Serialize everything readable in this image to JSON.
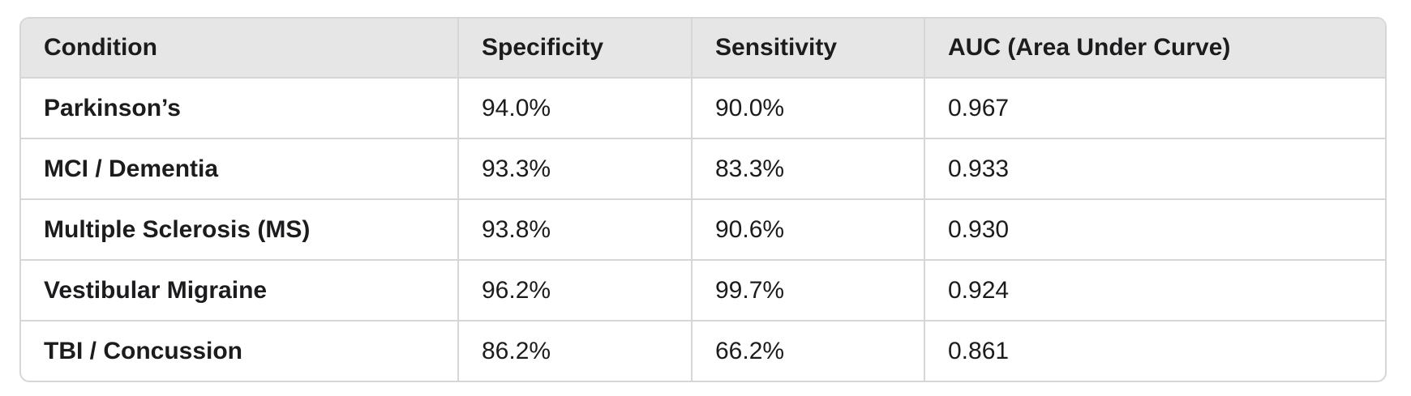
{
  "table": {
    "headers": [
      "Condition",
      "Specificity",
      "Sensitivity",
      "AUC (Area Under Curve)"
    ],
    "rows": [
      [
        "Parkinson’s",
        "94.0%",
        "90.0%",
        "0.967"
      ],
      [
        "MCI / Dementia",
        "93.3%",
        "83.3%",
        "0.933"
      ],
      [
        "Multiple Sclerosis (MS)",
        "93.8%",
        "90.6%",
        "0.930"
      ],
      [
        "Vestibular Migraine",
        "96.2%",
        "99.7%",
        "0.924"
      ],
      [
        "TBI / Concussion",
        "86.2%",
        "66.2%",
        "0.861"
      ]
    ]
  },
  "colors": {
    "header_background": "#e6e6e6",
    "border": "#d6d6d6",
    "text": "#1c1c1e"
  }
}
